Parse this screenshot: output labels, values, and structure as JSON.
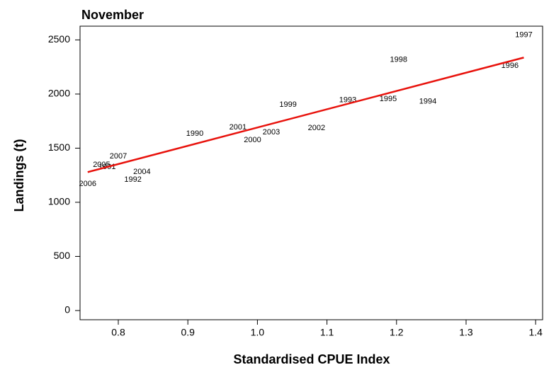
{
  "chart_data": {
    "type": "scatter",
    "title": "November",
    "x_label": "Standardised CPUE Index",
    "y_label": "Landings (t)",
    "x": [
      1.383,
      1.203,
      1.363,
      1.044,
      1.13,
      1.188,
      1.245,
      0.972,
      1.02,
      1.085,
      0.993,
      0.91,
      0.8,
      0.776,
      0.784,
      0.834,
      0.821,
      0.756
    ],
    "values": [
      2546,
      2317,
      2259,
      1900,
      1945,
      1952,
      1932,
      1691,
      1645,
      1684,
      1573,
      1632,
      1423,
      1345,
      1325,
      1279,
      1208,
      1168
    ],
    "point_labels": [
      "1997",
      "1998",
      "1996",
      "1999",
      "1993",
      "1995",
      "1994",
      "2001",
      "2003",
      "2002",
      "2000",
      "1990",
      "2007",
      "2005",
      "1991",
      "2004",
      "1992",
      "2006"
    ],
    "fit_line": {
      "x": [
        0.756,
        1.383
      ],
      "values": [
        1279,
        2337
      ],
      "color": "#e8120c"
    },
    "xlim": [
      0.745,
      1.41
    ],
    "ylim": [
      -85,
      2627
    ],
    "xticks": [
      0.8,
      0.9,
      {
        "value": 1.0,
        "label": "1.0"
      },
      1.1,
      1.2,
      1.3,
      1.4
    ],
    "yticks": [
      0,
      500,
      1000,
      1500,
      2000,
      2500
    ]
  }
}
